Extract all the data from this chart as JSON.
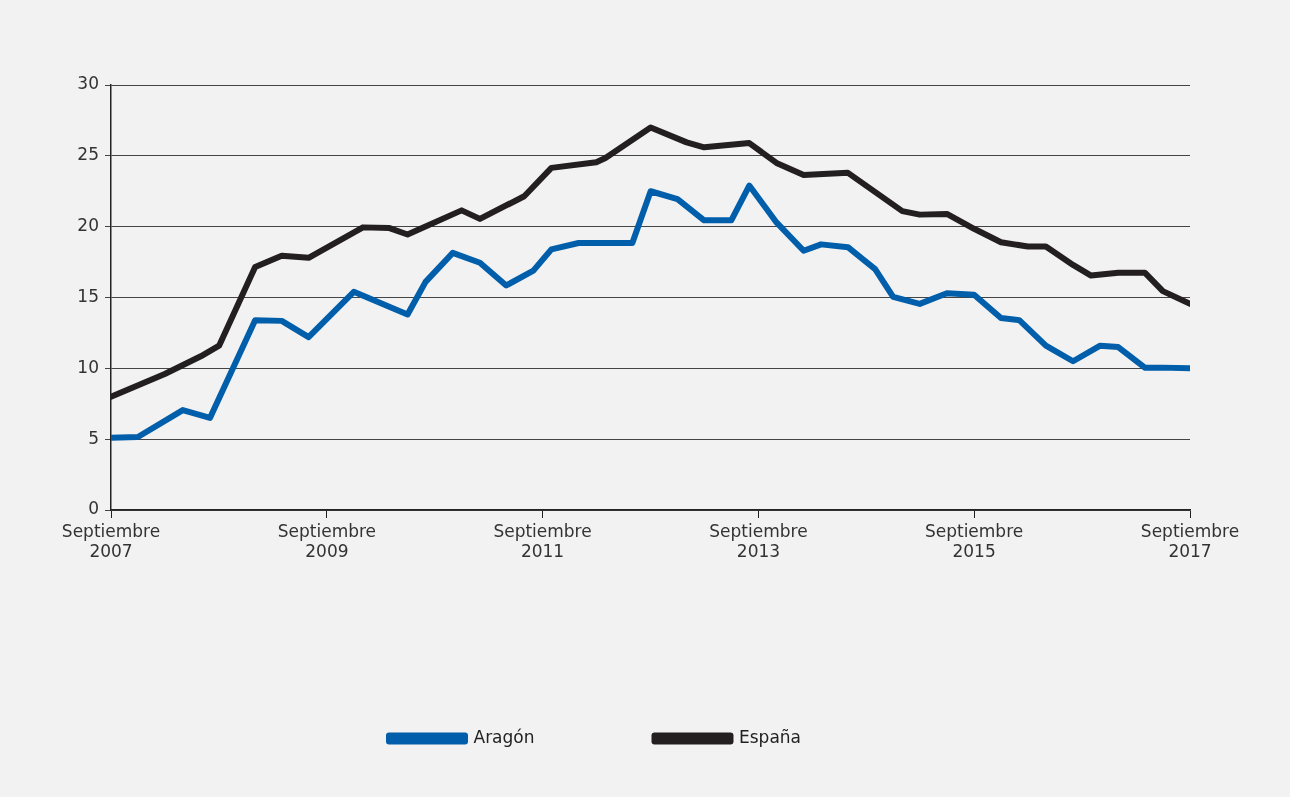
{
  "chart_data": {
    "type": "line",
    "xlim": [
      "2007-09",
      "2017-09"
    ],
    "xticks": [
      {
        "value": "2007-09",
        "label": "Septiembre 2007"
      },
      {
        "value": "2009-09",
        "label": "Septiembre 2009"
      },
      {
        "value": "2011-09",
        "label": "Septiembre 2011"
      },
      {
        "value": "2013-09",
        "label": "Septiembre 2013"
      },
      {
        "value": "2015-09",
        "label": "Septiembre 2015"
      },
      {
        "value": "2017-09",
        "label": "Septiembre 2017"
      }
    ],
    "ylim": [
      0,
      30
    ],
    "yticks": [
      0,
      5,
      10,
      15,
      20,
      25,
      30
    ],
    "grid": "y",
    "legend": "bottom",
    "marker": "none",
    "line_style": "solid",
    "series": [
      {
        "name": "Aragón",
        "color": "#005eaa",
        "x": [
          "2007-09",
          "2007-12",
          "2008-05",
          "2008-08",
          "2009-01",
          "2009-04",
          "2009-07",
          "2009-12",
          "2010-06",
          "2010-08",
          "2010-11",
          "2011-02",
          "2011-05",
          "2011-08",
          "2011-10",
          "2012-01",
          "2012-07",
          "2012-09",
          "2012-12",
          "2013-03",
          "2013-06",
          "2013-08",
          "2013-11",
          "2014-02",
          "2014-04",
          "2014-07",
          "2014-10",
          "2014-12",
          "2015-03",
          "2015-06",
          "2015-09",
          "2015-12",
          "2016-02",
          "2016-05",
          "2016-08",
          "2016-11",
          "2017-01",
          "2017-04",
          "2017-06",
          "2017-09"
        ],
        "values": [
          5.1,
          5.15,
          7.05,
          6.5,
          13.4,
          13.35,
          12.2,
          15.4,
          13.8,
          16.1,
          18.15,
          17.45,
          15.85,
          16.9,
          18.4,
          18.85,
          18.85,
          22.5,
          21.95,
          20.45,
          20.45,
          22.9,
          20.3,
          18.3,
          18.75,
          18.55,
          17.0,
          15.05,
          14.55,
          15.3,
          15.2,
          13.55,
          13.4,
          11.6,
          10.5,
          11.6,
          11.5,
          10.05,
          10.05,
          10.0
        ]
      },
      {
        "name": "España",
        "color": "#231f20",
        "x": [
          "2007-09",
          "2008-03",
          "2008-07",
          "2008-09",
          "2009-01",
          "2009-04",
          "2009-07",
          "2010-01",
          "2010-04",
          "2010-06",
          "2010-12",
          "2011-02",
          "2011-07",
          "2011-10",
          "2012-03",
          "2012-04",
          "2012-09",
          "2013-01",
          "2013-03",
          "2013-08",
          "2013-11",
          "2014-02",
          "2014-07",
          "2015-01",
          "2015-03",
          "2015-06",
          "2015-09",
          "2015-12",
          "2016-03",
          "2016-05",
          "2016-08",
          "2016-10",
          "2017-01",
          "2017-04",
          "2017-06",
          "2017-09"
        ],
        "values": [
          8.0,
          9.6,
          10.85,
          11.6,
          17.15,
          17.95,
          17.8,
          19.95,
          19.9,
          19.45,
          21.15,
          20.55,
          22.15,
          24.15,
          24.55,
          24.85,
          27.0,
          25.95,
          25.6,
          25.9,
          24.5,
          23.65,
          23.8,
          21.1,
          20.85,
          20.9,
          19.85,
          18.9,
          18.6,
          18.6,
          17.3,
          16.55,
          16.75,
          16.75,
          15.45,
          14.55
        ]
      }
    ]
  }
}
